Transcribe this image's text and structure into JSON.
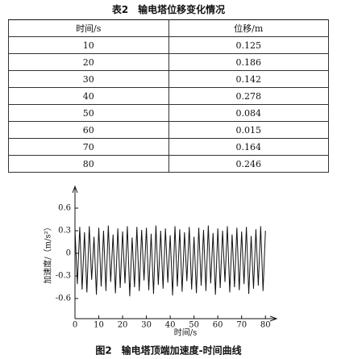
{
  "table": {
    "title": "表2　输电塔位移变化情况",
    "header": [
      "时间/s",
      "位移/m"
    ],
    "rows": [
      [
        10,
        0.125
      ],
      [
        20,
        0.186
      ],
      [
        30,
        0.142
      ],
      [
        40,
        0.278
      ],
      [
        50,
        0.084
      ],
      [
        60,
        0.015
      ],
      [
        70,
        0.164
      ],
      [
        80,
        0.246
      ]
    ]
  },
  "chart_data": {
    "type": "line",
    "caption": "图2　输电塔顶端加速度-时间曲线",
    "x_label": "时间/s",
    "y_label": "加速度/（m/s²）",
    "color": "#111111",
    "x": [
      0,
      1,
      2,
      3,
      4,
      5,
      6,
      7,
      8,
      9,
      10,
      11,
      12,
      13,
      14,
      15,
      16,
      17,
      18,
      19,
      20,
      21,
      22,
      23,
      24,
      25,
      26,
      27,
      28,
      29,
      30,
      31,
      32,
      33,
      34,
      35,
      36,
      37,
      38,
      39,
      40,
      41,
      42,
      43,
      44,
      45,
      46,
      47,
      48,
      49,
      50,
      51,
      52,
      53,
      54,
      55,
      56,
      57,
      58,
      59,
      60,
      61,
      62,
      63,
      64,
      65,
      66,
      67,
      68,
      69,
      70,
      71,
      72,
      73,
      74,
      75,
      76,
      77,
      78,
      79,
      80
    ],
    "values": [
      0.32,
      -0.41,
      0.35,
      -0.48,
      0.28,
      -0.52,
      0.36,
      -0.35,
      0.22,
      -0.55,
      0.34,
      -0.44,
      0.3,
      -0.5,
      0.37,
      -0.38,
      0.25,
      -0.53,
      0.33,
      -0.46,
      0.29,
      -0.4,
      0.36,
      -0.57,
      0.21,
      -0.45,
      0.35,
      -0.5,
      0.31,
      -0.36,
      0.34,
      -0.49,
      0.26,
      -0.54,
      0.37,
      -0.42,
      0.3,
      -0.47,
      0.33,
      -0.39,
      0.24,
      -0.56,
      0.36,
      -0.44,
      0.32,
      -0.51,
      0.28,
      -0.37,
      0.35,
      -0.48,
      0.22,
      -0.53,
      0.34,
      -0.43,
      0.31,
      -0.5,
      0.37,
      -0.4,
      0.27,
      -0.55,
      0.33,
      -0.46,
      0.3,
      -0.38,
      0.36,
      -0.52,
      0.25,
      -0.45,
      0.34,
      -0.49,
      0.29,
      -0.41,
      0.35,
      -0.54,
      0.23,
      -0.47,
      0.32,
      -0.43,
      0.36,
      -0.5,
      0.3
    ],
    "xlim": [
      0,
      85
    ],
    "ylim": [
      -0.9,
      0.9
    ],
    "xticks": [
      0,
      10,
      20,
      30,
      40,
      50,
      60,
      70,
      80
    ],
    "yticks": [
      -0.6,
      -0.3,
      0,
      0.3,
      0.6
    ]
  }
}
